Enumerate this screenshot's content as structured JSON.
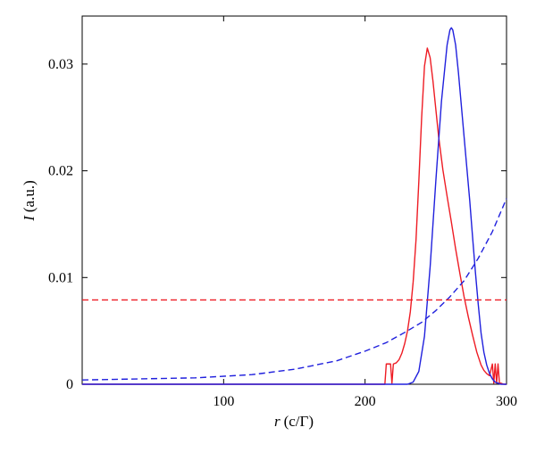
{
  "chart_data": {
    "type": "line",
    "xlabel_var": "r",
    "xlabel_unit": "(c/Γ)",
    "ylabel_var": "I",
    "ylabel_unit": "(a.u.)",
    "xlim": [
      0,
      300
    ],
    "ylim": [
      0,
      0.0345
    ],
    "x_ticks": [
      100,
      200,
      300
    ],
    "x_tick_labels": [
      "100",
      "200",
      "300"
    ],
    "y_ticks": [
      0,
      0.01,
      0.02,
      0.03
    ],
    "y_tick_labels": [
      "0",
      "0.01",
      "0.02",
      "0.03"
    ],
    "grid": false,
    "series": [
      {
        "color": "#ee1c24",
        "style": "solid",
        "x": [
          0,
          200,
          214,
          215,
          216,
          218,
          219,
          220,
          222,
          224,
          226,
          228,
          230,
          232,
          234,
          236,
          238,
          240,
          242,
          244,
          246,
          248,
          250,
          252,
          255,
          258,
          261,
          264,
          267,
          270,
          273,
          276,
          279,
          282,
          284,
          286,
          288,
          290,
          291,
          292,
          293,
          294,
          295,
          296,
          298,
          300
        ],
        "y": [
          0,
          0,
          0,
          0.0019,
          0.0019,
          0.0019,
          0.0001,
          0.0019,
          0.002,
          0.0023,
          0.0029,
          0.0038,
          0.005,
          0.0068,
          0.0096,
          0.0135,
          0.019,
          0.025,
          0.0298,
          0.0315,
          0.0306,
          0.0284,
          0.0258,
          0.0232,
          0.0201,
          0.0176,
          0.0152,
          0.0127,
          0.0104,
          0.0082,
          0.0063,
          0.0046,
          0.003,
          0.0018,
          0.0013,
          0.001,
          0.0008,
          0.0019,
          0.0001,
          0.0019,
          0.0001,
          0.0019,
          0.0001,
          0.0001,
          0,
          0
        ]
      },
      {
        "color": "#2020dd",
        "style": "solid",
        "x": [
          0,
          230,
          234,
          238,
          242,
          246,
          250,
          254,
          258,
          260,
          261,
          262,
          264,
          266,
          268,
          270,
          272,
          274,
          276,
          278,
          280,
          282,
          284,
          286,
          288,
          290,
          292,
          294,
          296,
          298,
          300
        ],
        "y": [
          0,
          0,
          0.0002,
          0.0012,
          0.0045,
          0.011,
          0.019,
          0.0265,
          0.0318,
          0.0332,
          0.0334,
          0.0332,
          0.0318,
          0.0292,
          0.0262,
          0.0232,
          0.0202,
          0.0172,
          0.0138,
          0.0105,
          0.0075,
          0.0048,
          0.003,
          0.0018,
          0.001,
          0.0005,
          0.0002,
          0.0001,
          0,
          0,
          0
        ]
      },
      {
        "color": "#2020dd",
        "style": "dashed",
        "x": [
          0,
          40,
          80,
          120,
          150,
          180,
          200,
          215,
          230,
          240,
          250,
          260,
          270,
          280,
          290,
          300
        ],
        "y": [
          0.0004,
          0.0005,
          0.0006,
          0.0009,
          0.0014,
          0.0022,
          0.0031,
          0.0039,
          0.005,
          0.0058,
          0.0069,
          0.0082,
          0.0097,
          0.0118,
          0.0143,
          0.0174
        ]
      },
      {
        "color": "#ee1c24",
        "style": "dashed",
        "x": [
          0,
          300
        ],
        "y": [
          0.0079,
          0.0079
        ]
      }
    ]
  }
}
